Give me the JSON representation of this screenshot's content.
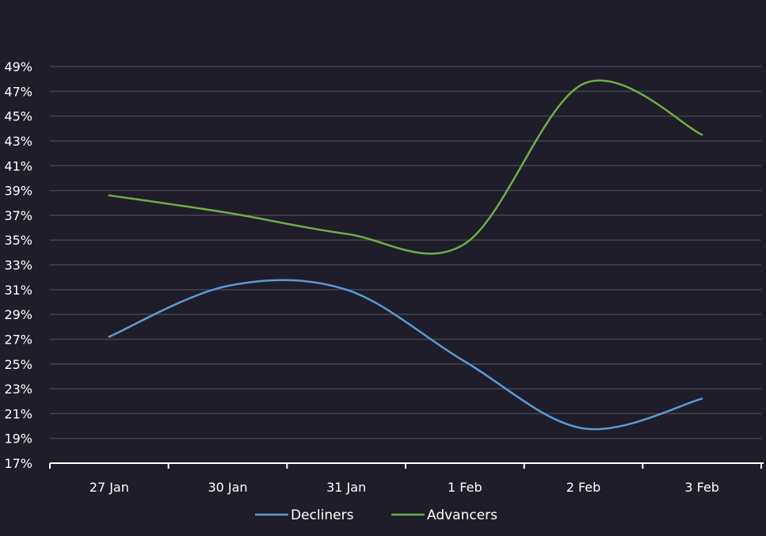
{
  "chart_data": {
    "type": "line",
    "title": "",
    "xlabel": "",
    "ylabel": "",
    "categories": [
      "27 Jan",
      "30 Jan",
      "31 Jan",
      "1 Feb",
      "2 Feb",
      "3 Feb"
    ],
    "ylim": [
      17,
      49
    ],
    "yticks": [
      17,
      19,
      21,
      23,
      25,
      27,
      29,
      31,
      33,
      35,
      37,
      39,
      41,
      43,
      45,
      47,
      49
    ],
    "ytick_labels": [
      "17%",
      "19%",
      "21%",
      "23%",
      "25%",
      "27%",
      "29%",
      "31%",
      "33%",
      "35%",
      "37%",
      "39%",
      "41%",
      "43%",
      "45%",
      "47%",
      "49%"
    ],
    "grid": true,
    "smooth": true,
    "legend_position": "bottom",
    "series": [
      {
        "name": "Decliners",
        "color": "#5b9bd5",
        "values": [
          27.2,
          31.3,
          31.0,
          25.2,
          19.8,
          22.2
        ]
      },
      {
        "name": "Advancers",
        "color": "#70ad47",
        "values": [
          38.6,
          37.2,
          35.5,
          34.7,
          47.6,
          43.5
        ]
      }
    ]
  }
}
